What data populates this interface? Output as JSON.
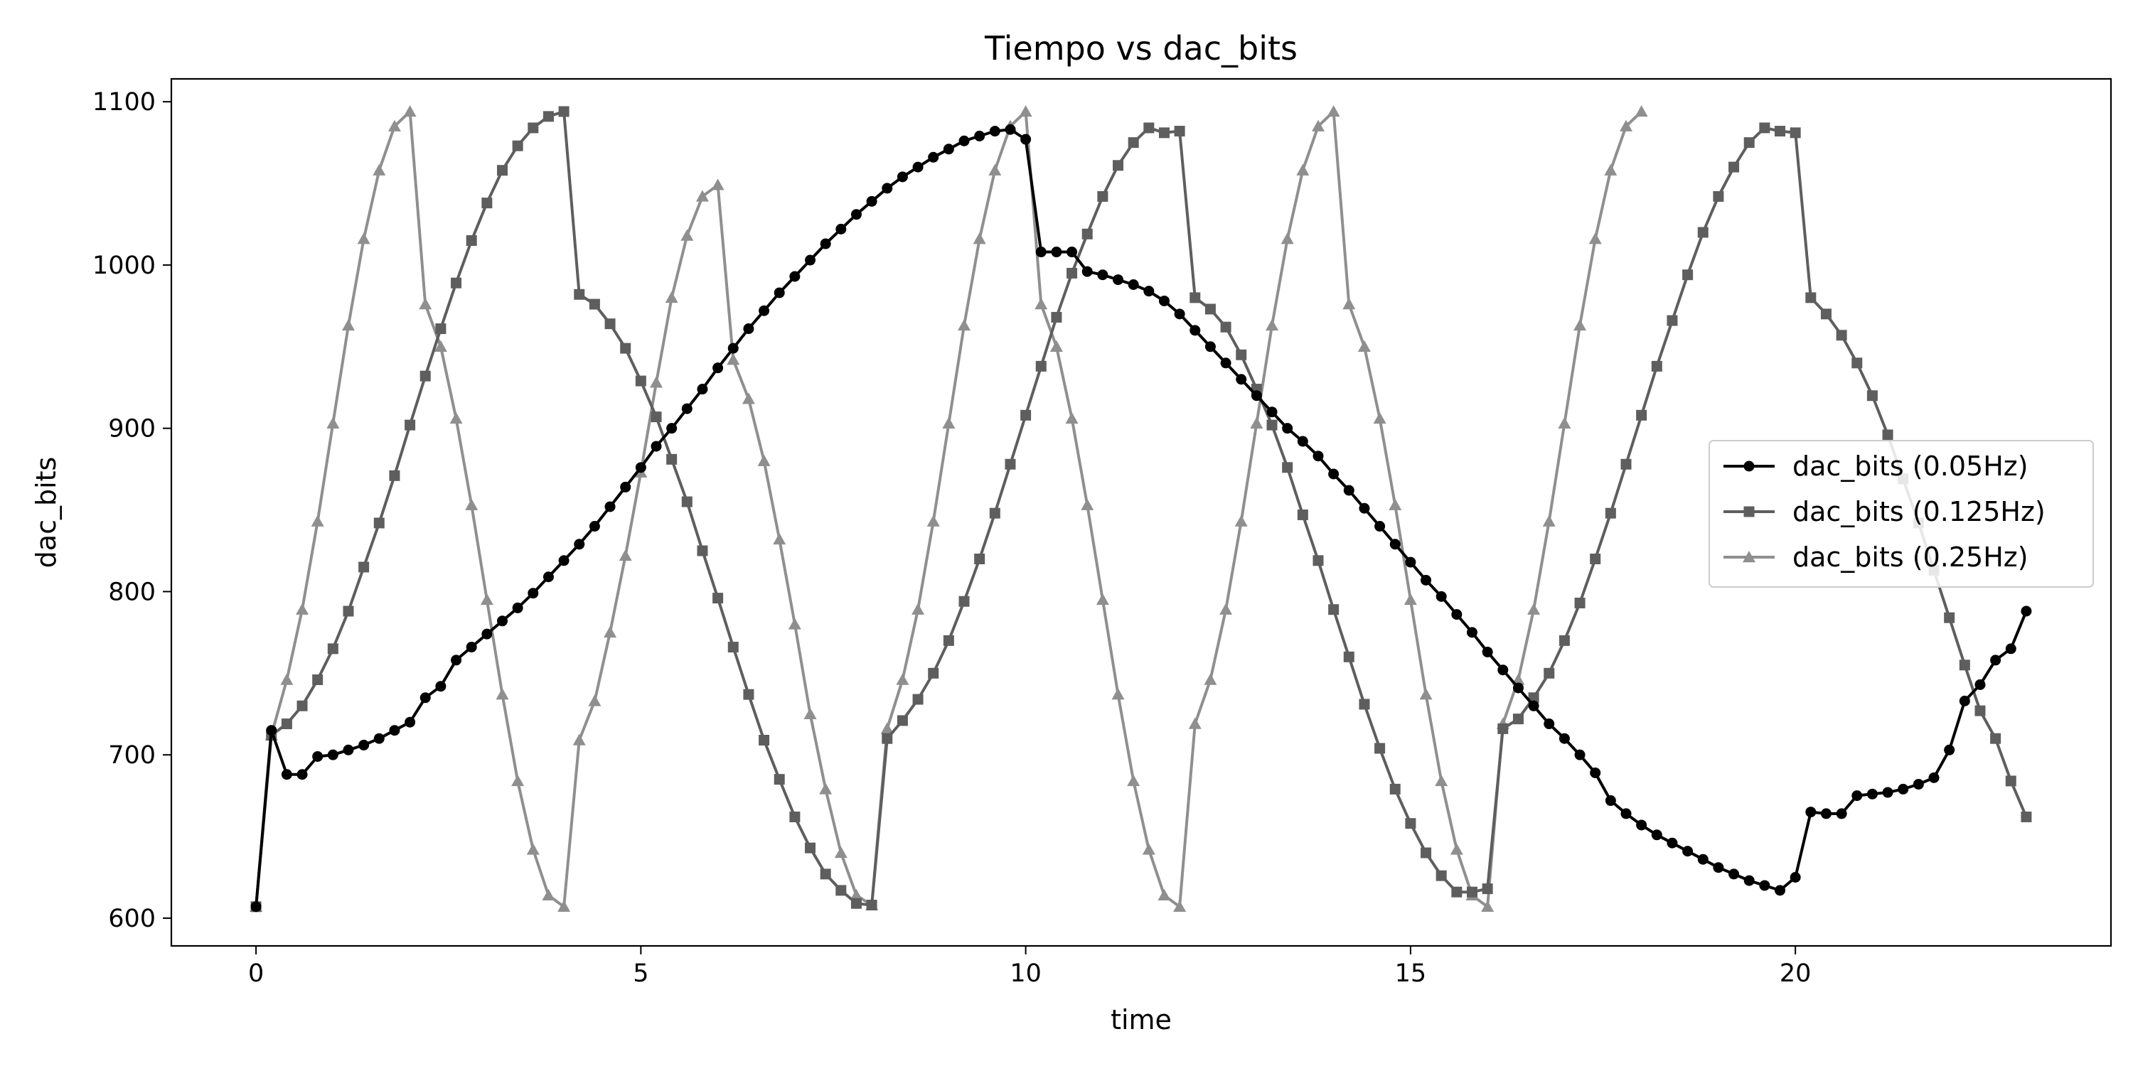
{
  "chart_data": {
    "type": "line",
    "title": "Tiempo vs dac_bits",
    "xlabel": "time",
    "ylabel": "dac_bits",
    "xlim": [
      -1.1,
      24.1
    ],
    "ylim": [
      583,
      1114
    ],
    "xticks": [
      0,
      5,
      10,
      15,
      20
    ],
    "yticks": [
      600,
      700,
      800,
      900,
      1000,
      1100
    ],
    "grid": false,
    "legend_position": "center-right",
    "series": [
      {
        "name": "dac_bits (0.05Hz)",
        "color": "#000000",
        "marker": "circle",
        "x": [
          0.0,
          0.2,
          0.4,
          0.6,
          0.8,
          1.0,
          1.2,
          1.4,
          1.6,
          1.8,
          2.0,
          2.2,
          2.4,
          2.6,
          2.8,
          3.0,
          3.2,
          3.4,
          3.6,
          3.8,
          4.0,
          4.2,
          4.4,
          4.6,
          4.8,
          5.0,
          5.2,
          5.4,
          5.6,
          5.8,
          6.0,
          6.2,
          6.4,
          6.6,
          6.8,
          7.0,
          7.2,
          7.4,
          7.6,
          7.8,
          8.0,
          8.2,
          8.4,
          8.6,
          8.8,
          9.0,
          9.2,
          9.4,
          9.6,
          9.8,
          10.0,
          10.2,
          10.4,
          10.6,
          10.8,
          11.0,
          11.2,
          11.4,
          11.6,
          11.8,
          12.0,
          12.2,
          12.4,
          12.6,
          12.8,
          13.0,
          13.2,
          13.4,
          13.6,
          13.8,
          14.0,
          14.2,
          14.4,
          14.6,
          14.8,
          15.0,
          15.2,
          15.4,
          15.6,
          15.8,
          16.0,
          16.2,
          16.4,
          16.6,
          16.8,
          17.0,
          17.2,
          17.4,
          17.6,
          17.8,
          18.0,
          18.2,
          18.4,
          18.6,
          18.8,
          19.0,
          19.2,
          19.4,
          19.6,
          19.8,
          20.0,
          20.2,
          20.4,
          20.6,
          20.8,
          21.0,
          21.2,
          21.4,
          21.6,
          21.8,
          22.0,
          22.2,
          22.4,
          22.6,
          22.8,
          23.0
        ],
        "y": [
          607,
          715,
          688,
          688,
          699,
          700,
          703,
          706,
          710,
          715,
          720,
          735,
          742,
          758,
          766,
          774,
          782,
          790,
          799,
          809,
          819,
          829,
          840,
          852,
          864,
          876,
          889,
          900,
          912,
          924,
          937,
          949,
          961,
          972,
          983,
          993,
          1003,
          1013,
          1022,
          1031,
          1039,
          1047,
          1054,
          1060,
          1066,
          1071,
          1076,
          1079,
          1082,
          1083,
          1077,
          1008,
          1008,
          1008,
          996,
          994,
          991,
          988,
          984,
          978,
          970,
          960,
          950,
          940,
          930,
          920,
          910,
          900,
          892,
          883,
          872,
          862,
          851,
          840,
          829,
          818,
          807,
          797,
          786,
          775,
          763,
          752,
          741,
          730,
          719,
          710,
          700,
          689,
          672,
          664,
          657,
          651,
          646,
          641,
          636,
          631,
          627,
          623,
          620,
          617,
          625,
          665,
          664,
          664,
          675,
          676,
          677,
          679,
          682,
          686,
          703,
          733,
          743,
          758,
          765,
          788
        ]
      },
      {
        "name": "dac_bits (0.125Hz)",
        "color": "#5e5e5e",
        "marker": "square",
        "x": [
          0.0,
          0.2,
          0.4,
          0.6,
          0.8,
          1.0,
          1.2,
          1.4,
          1.6,
          1.8,
          2.0,
          2.2,
          2.4,
          2.6,
          2.8,
          3.0,
          3.2,
          3.4,
          3.6,
          3.8,
          4.0,
          4.2,
          4.4,
          4.6,
          4.8,
          5.0,
          5.2,
          5.4,
          5.6,
          5.8,
          6.0,
          6.2,
          6.4,
          6.6,
          6.8,
          7.0,
          7.2,
          7.4,
          7.6,
          7.8,
          8.0,
          8.2,
          8.4,
          8.6,
          8.8,
          9.0,
          9.2,
          9.4,
          9.6,
          9.8,
          10.0,
          10.2,
          10.4,
          10.6,
          10.8,
          11.0,
          11.2,
          11.4,
          11.6,
          11.8,
          12.0,
          12.2,
          12.4,
          12.6,
          12.8,
          13.0,
          13.2,
          13.4,
          13.6,
          13.8,
          14.0,
          14.2,
          14.4,
          14.6,
          14.8,
          15.0,
          15.2,
          15.4,
          15.6,
          15.8,
          16.0,
          16.2,
          16.4,
          16.6,
          16.8,
          17.0,
          17.2,
          17.4,
          17.6,
          17.8,
          18.0,
          18.2,
          18.4,
          18.6,
          18.8,
          19.0,
          19.2,
          19.4,
          19.6,
          19.8,
          20.0,
          20.2,
          20.4,
          20.6,
          20.8,
          21.0,
          21.2,
          21.4,
          21.6,
          21.8,
          22.0,
          22.2,
          22.4,
          22.6,
          22.8,
          23.0
        ],
        "y": [
          607,
          712,
          719,
          730,
          746,
          765,
          788,
          815,
          842,
          871,
          902,
          932,
          961,
          989,
          1015,
          1038,
          1058,
          1073,
          1084,
          1091,
          1094,
          982,
          976,
          964,
          949,
          929,
          907,
          881,
          855,
          825,
          796,
          766,
          737,
          709,
          685,
          662,
          643,
          627,
          617,
          609,
          608,
          710,
          721,
          734,
          750,
          770,
          794,
          820,
          848,
          878,
          908,
          938,
          968,
          995,
          1019,
          1042,
          1061,
          1075,
          1084,
          1081,
          1082,
          980,
          973,
          962,
          945,
          924,
          902,
          876,
          847,
          819,
          789,
          760,
          731,
          704,
          679,
          658,
          640,
          626,
          616,
          616,
          618,
          716,
          722,
          735,
          750,
          770,
          793,
          820,
          848,
          878,
          908,
          938,
          966,
          994,
          1020,
          1042,
          1060,
          1075,
          1084,
          1082,
          1081,
          980,
          970,
          957,
          940,
          920,
          896,
          869,
          842,
          813,
          784,
          755,
          727,
          710,
          684,
          662
        ]
      },
      {
        "name": "dac_bits (0.25Hz)",
        "color": "#8f8f8f",
        "marker": "triangle",
        "x": [
          0.0,
          0.2,
          0.4,
          0.6,
          0.8,
          1.0,
          1.2,
          1.4,
          1.6,
          1.8,
          2.0,
          2.2,
          2.4,
          2.6,
          2.8,
          3.0,
          3.2,
          3.4,
          3.6,
          3.8,
          4.0,
          4.2,
          4.4,
          4.6,
          4.8,
          5.0,
          5.2,
          5.4,
          5.6,
          5.8,
          6.0,
          6.2,
          6.4,
          6.6,
          6.8,
          7.0,
          7.2,
          7.4,
          7.6,
          7.8,
          8.0,
          8.2,
          8.4,
          8.6,
          8.8,
          9.0,
          9.2,
          9.4,
          9.6,
          9.8,
          10.0,
          10.2,
          10.4,
          10.6,
          10.8,
          11.0,
          11.2,
          11.4,
          11.6,
          11.8,
          12.0,
          12.2,
          12.4,
          12.6,
          12.8,
          13.0,
          13.2,
          13.4,
          13.6,
          13.8,
          14.0,
          14.2,
          14.4,
          14.6,
          14.8,
          15.0,
          15.2,
          15.4,
          15.6,
          15.8,
          16.0,
          16.2,
          16.4,
          16.6,
          16.8,
          17.0,
          17.2,
          17.4,
          17.6,
          17.8,
          18.0
        ],
        "y": [
          607,
          712,
          746,
          789,
          843,
          903,
          963,
          1016,
          1058,
          1085,
          1094,
          976,
          950,
          906,
          853,
          795,
          737,
          684,
          642,
          614,
          607,
          709,
          733,
          775,
          822,
          873,
          928,
          980,
          1018,
          1042,
          1049,
          942,
          918,
          880,
          832,
          780,
          725,
          679,
          640,
          614,
          608,
          716,
          746,
          789,
          843,
          903,
          963,
          1016,
          1058,
          1085,
          1094,
          976,
          950,
          906,
          853,
          795,
          737,
          684,
          642,
          614,
          607,
          719,
          746,
          789,
          843,
          903,
          963,
          1016,
          1058,
          1085,
          1094,
          976,
          950,
          906,
          853,
          795,
          737,
          684,
          642,
          614,
          607,
          719,
          746,
          789,
          843,
          903,
          963,
          1016,
          1058,
          1085,
          1094
        ]
      }
    ]
  }
}
